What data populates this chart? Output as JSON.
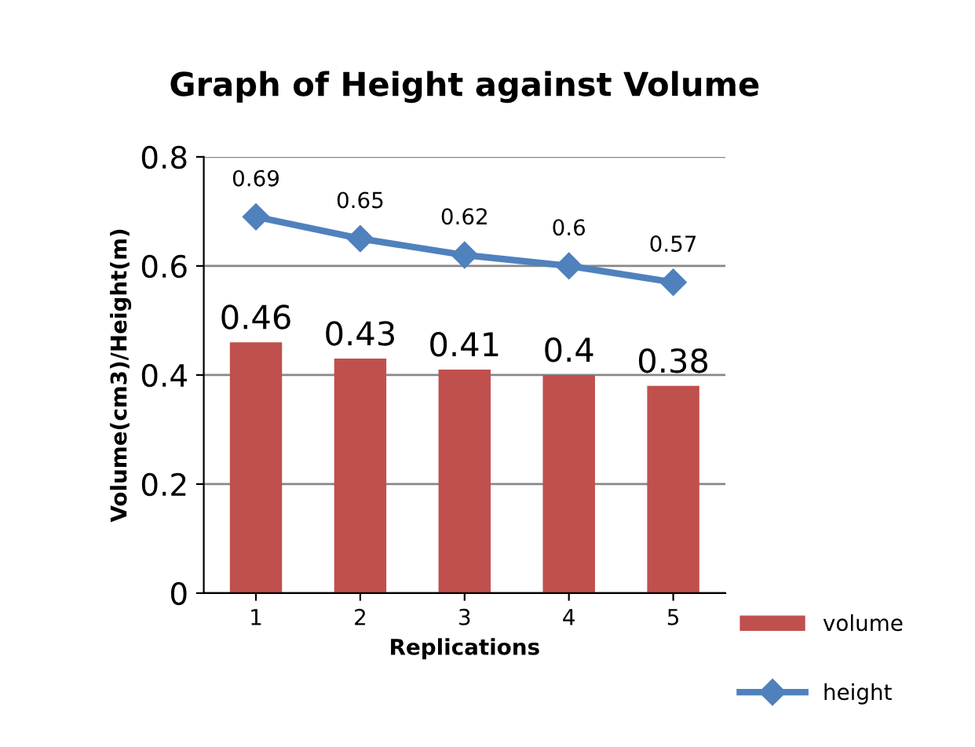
{
  "chart_data": {
    "type": "bar",
    "title": "Graph of Height against Volume",
    "xlabel": "Replications",
    "ylabel": "Volume(cm3)/Height(m)",
    "categories": [
      "1",
      "2",
      "3",
      "4",
      "5"
    ],
    "series": [
      {
        "name": "volume",
        "color": "#c0504d",
        "values": [
          0.46,
          0.43,
          0.41,
          0.4,
          0.38
        ]
      },
      {
        "name": "height",
        "type": "line",
        "color": "#4f81bd",
        "values": [
          0.69,
          0.65,
          0.62,
          0.6,
          0.57
        ]
      }
    ],
    "ylim": [
      0,
      0.8
    ],
    "yticks": [
      0,
      0.2,
      0.4,
      0.6,
      0.8
    ],
    "grid": "y",
    "legend": "right",
    "marker": "diamond",
    "data_labels": true
  }
}
